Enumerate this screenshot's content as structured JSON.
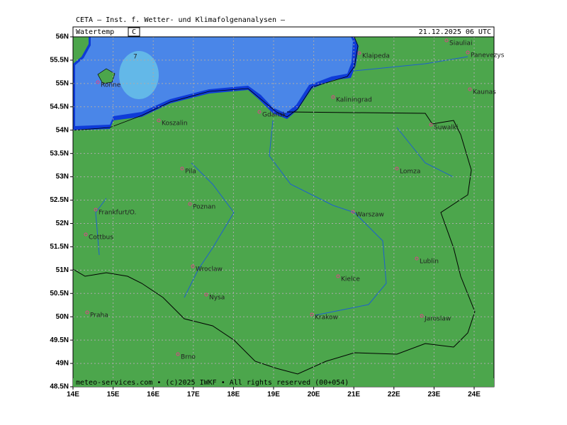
{
  "header": {
    "title": "CETA – Inst. f. Wetter- und Klimafolgenanalysen –",
    "parameter": "Watertemp",
    "unit": "C",
    "date": "21.12.2025 06 UTC"
  },
  "contour_label": "7",
  "lat_labels": [
    "56N",
    "55.5N",
    "55N",
    "54.5N",
    "54N",
    "53.5N",
    "53N",
    "52.5N",
    "52N",
    "51.5N",
    "51N",
    "50.5N",
    "50N",
    "49.5N",
    "49N",
    "48.5N"
  ],
  "lon_labels": [
    "14E",
    "15E",
    "16E",
    "17E",
    "18E",
    "19E",
    "20E",
    "21E",
    "22E",
    "23E",
    "24E"
  ],
  "cities": [
    "Siauliai",
    "Panevezys",
    "Klaipeda",
    "Ronne",
    "Kaunas",
    "Kaliningrad",
    "Gdansk",
    "Koszalin",
    "Suwalki",
    "Pila",
    "Lomza",
    "Poznan",
    "Frankfurt/O.",
    "Warszaw",
    "Cottbus",
    "Lublin",
    "Wroclaw",
    "Kielce",
    "Nysa",
    "Praha",
    "Krakow",
    "Jaroslaw",
    "Brno"
  ],
  "footer": "meteo-services.com • (c)2025 IWKF • All rights reserved (00+054)"
}
